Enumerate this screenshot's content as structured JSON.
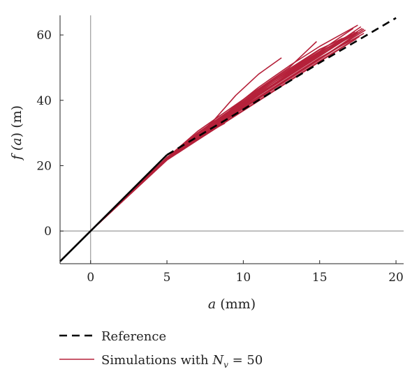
{
  "chart_data": {
    "type": "line",
    "xlabel": "a (mm)",
    "ylabel": "f (a) (m)",
    "xlim": [
      -2,
      20.5
    ],
    "ylim": [
      -10,
      66
    ],
    "xticks": [
      0,
      5,
      10,
      15,
      20
    ],
    "yticks": [
      0,
      20,
      40,
      60
    ],
    "xtick_labels": [
      "0",
      "5",
      "10",
      "15",
      "20"
    ],
    "ytick_labels": [
      "0",
      "20",
      "40",
      "60"
    ],
    "zero_lines": true,
    "grid": false,
    "legend_position": "bottom-left",
    "series": [
      {
        "name": "Reference",
        "style": "dashed",
        "color": "#000000",
        "x": [
          -2,
          0,
          5,
          10,
          15,
          20
        ],
        "y": [
          -9.3,
          0,
          23.3,
          37.2,
          51.5,
          65.2
        ]
      },
      {
        "name": "Simulations with N_v = 50",
        "style": "solid",
        "color": "#b5213a",
        "note": "50 simulated realisations, approximately tracking the reference for a ≥ 5 mm with spread increasing toward larger a",
        "curves": [
          {
            "x": [
              0,
              5,
              6.5,
              8,
              9.5,
              11,
              12.5
            ],
            "y": [
              0,
              22.0,
              27.5,
              33.5,
              41.5,
              48.0,
              53.0
            ]
          },
          {
            "x": [
              0,
              5,
              7,
              9,
              11,
              13,
              15,
              17.5
            ],
            "y": [
              0,
              22.5,
              30.0,
              36.5,
              44.0,
              50.5,
              56.5,
              63.0
            ]
          },
          {
            "x": [
              0,
              5,
              7,
              9,
              11,
              13,
              15,
              17.2
            ],
            "y": [
              0,
              22.3,
              29.5,
              36.0,
              43.0,
              49.0,
              55.0,
              62.0
            ]
          },
          {
            "x": [
              0,
              5,
              7,
              9,
              11,
              13,
              15,
              17.8
            ],
            "y": [
              0,
              22.0,
              29.0,
              35.5,
              42.0,
              48.0,
              54.0,
              62.0
            ]
          },
          {
            "x": [
              0,
              5,
              7,
              9,
              11,
              13,
              15,
              17.5
            ],
            "y": [
              0,
              22.6,
              28.8,
              35.0,
              41.5,
              47.5,
              53.5,
              61.0
            ]
          },
          {
            "x": [
              0,
              5,
              7,
              9,
              11,
              13,
              15,
              17.9
            ],
            "y": [
              0,
              22.2,
              28.5,
              34.8,
              41.0,
              47.0,
              53.0,
              60.5
            ]
          },
          {
            "x": [
              0,
              5,
              7,
              9,
              11,
              13,
              15,
              17.0
            ],
            "y": [
              0,
              21.8,
              28.0,
              34.5,
              40.5,
              46.5,
              52.5,
              58.5
            ]
          },
          {
            "x": [
              0,
              5,
              7,
              9,
              11,
              13,
              14.8
            ],
            "y": [
              0,
              22.4,
              30.5,
              37.0,
              43.5,
              50.0,
              58.0
            ]
          },
          {
            "x": [
              0,
              5,
              7,
              9,
              11,
              13,
              15,
              17.6
            ],
            "y": [
              0,
              21.9,
              28.2,
              34.0,
              40.0,
              46.0,
              52.0,
              59.5
            ]
          },
          {
            "x": [
              0,
              5,
              7,
              9,
              11,
              13,
              15,
              17.3
            ],
            "y": [
              0,
              22.1,
              29.2,
              35.8,
              42.5,
              48.5,
              54.5,
              61.0
            ]
          },
          {
            "x": [
              0,
              5,
              7,
              9,
              11,
              13,
              15,
              18.0
            ],
            "y": [
              0,
              22.0,
              28.6,
              34.6,
              40.8,
              46.8,
              52.8,
              61.5
            ]
          },
          {
            "x": [
              0,
              5,
              7,
              9,
              11,
              13,
              15,
              16.5
            ],
            "y": [
              0,
              22.5,
              29.8,
              36.2,
              42.8,
              49.2,
              55.5,
              59.0
            ]
          },
          {
            "x": [
              0,
              5,
              7,
              9,
              11,
              13,
              15,
              17.4
            ],
            "y": [
              0,
              21.7,
              27.8,
              33.8,
              39.8,
              45.8,
              51.8,
              58.8
            ]
          },
          {
            "x": [
              0,
              5,
              7,
              8.8
            ],
            "y": [
              0,
              22.0,
              28.5,
              33.0
            ]
          },
          {
            "x": [
              0,
              5,
              7,
              9.0
            ],
            "y": [
              0,
              22.3,
              29.8,
              34.5
            ]
          },
          {
            "x": [
              0,
              5,
              7,
              9,
              11,
              13,
              15,
              17.7
            ],
            "y": [
              0,
              22.2,
              29.0,
              35.2,
              41.6,
              47.8,
              53.8,
              62.5
            ]
          },
          {
            "x": [
              0,
              5,
              7,
              9,
              11,
              13,
              15,
              17.1
            ],
            "y": [
              0,
              22.4,
              29.6,
              36.4,
              43.2,
              49.6,
              55.6,
              60.2
            ]
          },
          {
            "x": [
              0,
              5,
              7,
              9,
              11,
              13,
              15,
              17.9
            ],
            "y": [
              0,
              21.9,
              28.4,
              34.4,
              40.6,
              46.6,
              52.6,
              61.8
            ]
          },
          {
            "x": [
              0,
              5,
              7,
              9,
              11,
              13,
              15,
              17.5
            ],
            "y": [
              0,
              22.0,
              28.9,
              35.4,
              41.8,
              48.2,
              54.2,
              60.6
            ]
          },
          {
            "x": [
              0,
              5,
              7,
              9,
              11,
              13,
              15,
              16.8
            ],
            "y": [
              0,
              22.3,
              29.3,
              35.9,
              42.3,
              48.7,
              54.8,
              59.5
            ]
          }
        ]
      }
    ],
    "legend": [
      {
        "label_prefix": "Reference",
        "style": "dashed"
      },
      {
        "label_prefix": "Simulations with ",
        "symbol": "N",
        "subscript": "v",
        "label_suffix": " = 50",
        "style": "solid"
      }
    ],
    "colors": {
      "reference": "#000000",
      "simulation": "#b5213a",
      "zero_axis": "#9a9a9a"
    }
  }
}
